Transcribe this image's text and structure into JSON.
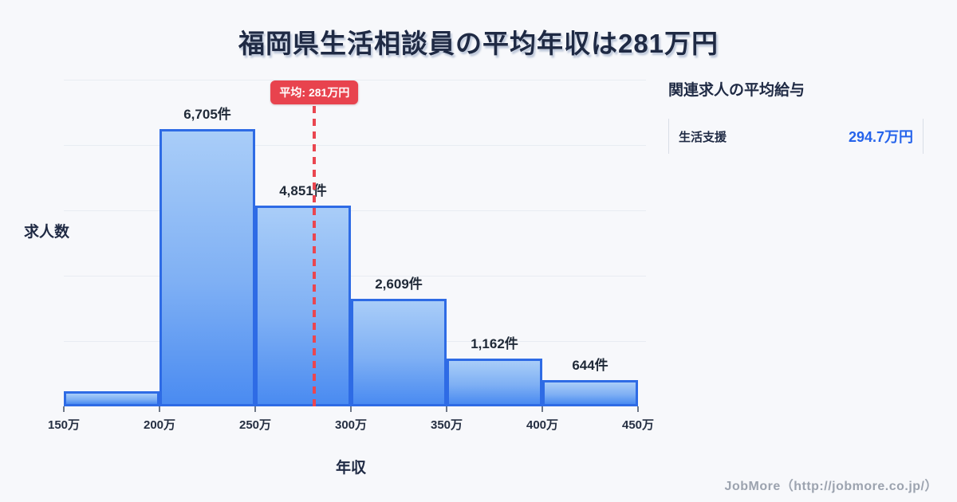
{
  "title": "福岡県生活相談員の平均年収は281万円",
  "chart_data": {
    "type": "bar",
    "title": "福岡県生活相談員の平均年収は281万円",
    "xlabel": "年収",
    "ylabel": "求人数",
    "unit": "件",
    "categories": [
      "150万-200万",
      "200万-250万",
      "250万-300万",
      "300万-350万",
      "350万-400万",
      "400万-450万"
    ],
    "values": [
      370,
      6705,
      4851,
      2609,
      1162,
      644
    ],
    "bar_labels": [
      "",
      "6,705件",
      "4,851件",
      "2,609件",
      "1,162件",
      "644件"
    ],
    "x_tick_labels": [
      "150万",
      "200万",
      "250万",
      "300万",
      "350万",
      "400万",
      "450万"
    ],
    "x_range_man_yen": [
      150,
      450
    ],
    "ylim": [
      0,
      7900
    ],
    "grid": "horizontal",
    "mean_line": {
      "label": "平均: 281万円",
      "value_man_yen": 281
    }
  },
  "side_panel": {
    "heading": "関連求人の平均給与",
    "rows": [
      {
        "label": "生活支援",
        "value": "294.7万円"
      }
    ]
  },
  "footer": {
    "credit": "JobMore（http://jobmore.co.jp/）"
  },
  "colors": {
    "background": "#F7F8FB",
    "title_navy": "#1F2A44",
    "bar_border": "#2E6BE5",
    "bar_fill_top": "#A9CDF8",
    "bar_fill_bottom": "#4A8BF1",
    "mean_red": "#E8434E",
    "value_blue": "#2563EB",
    "gridline": "#E8ECF2",
    "footer_gray": "#9CA3AF"
  }
}
